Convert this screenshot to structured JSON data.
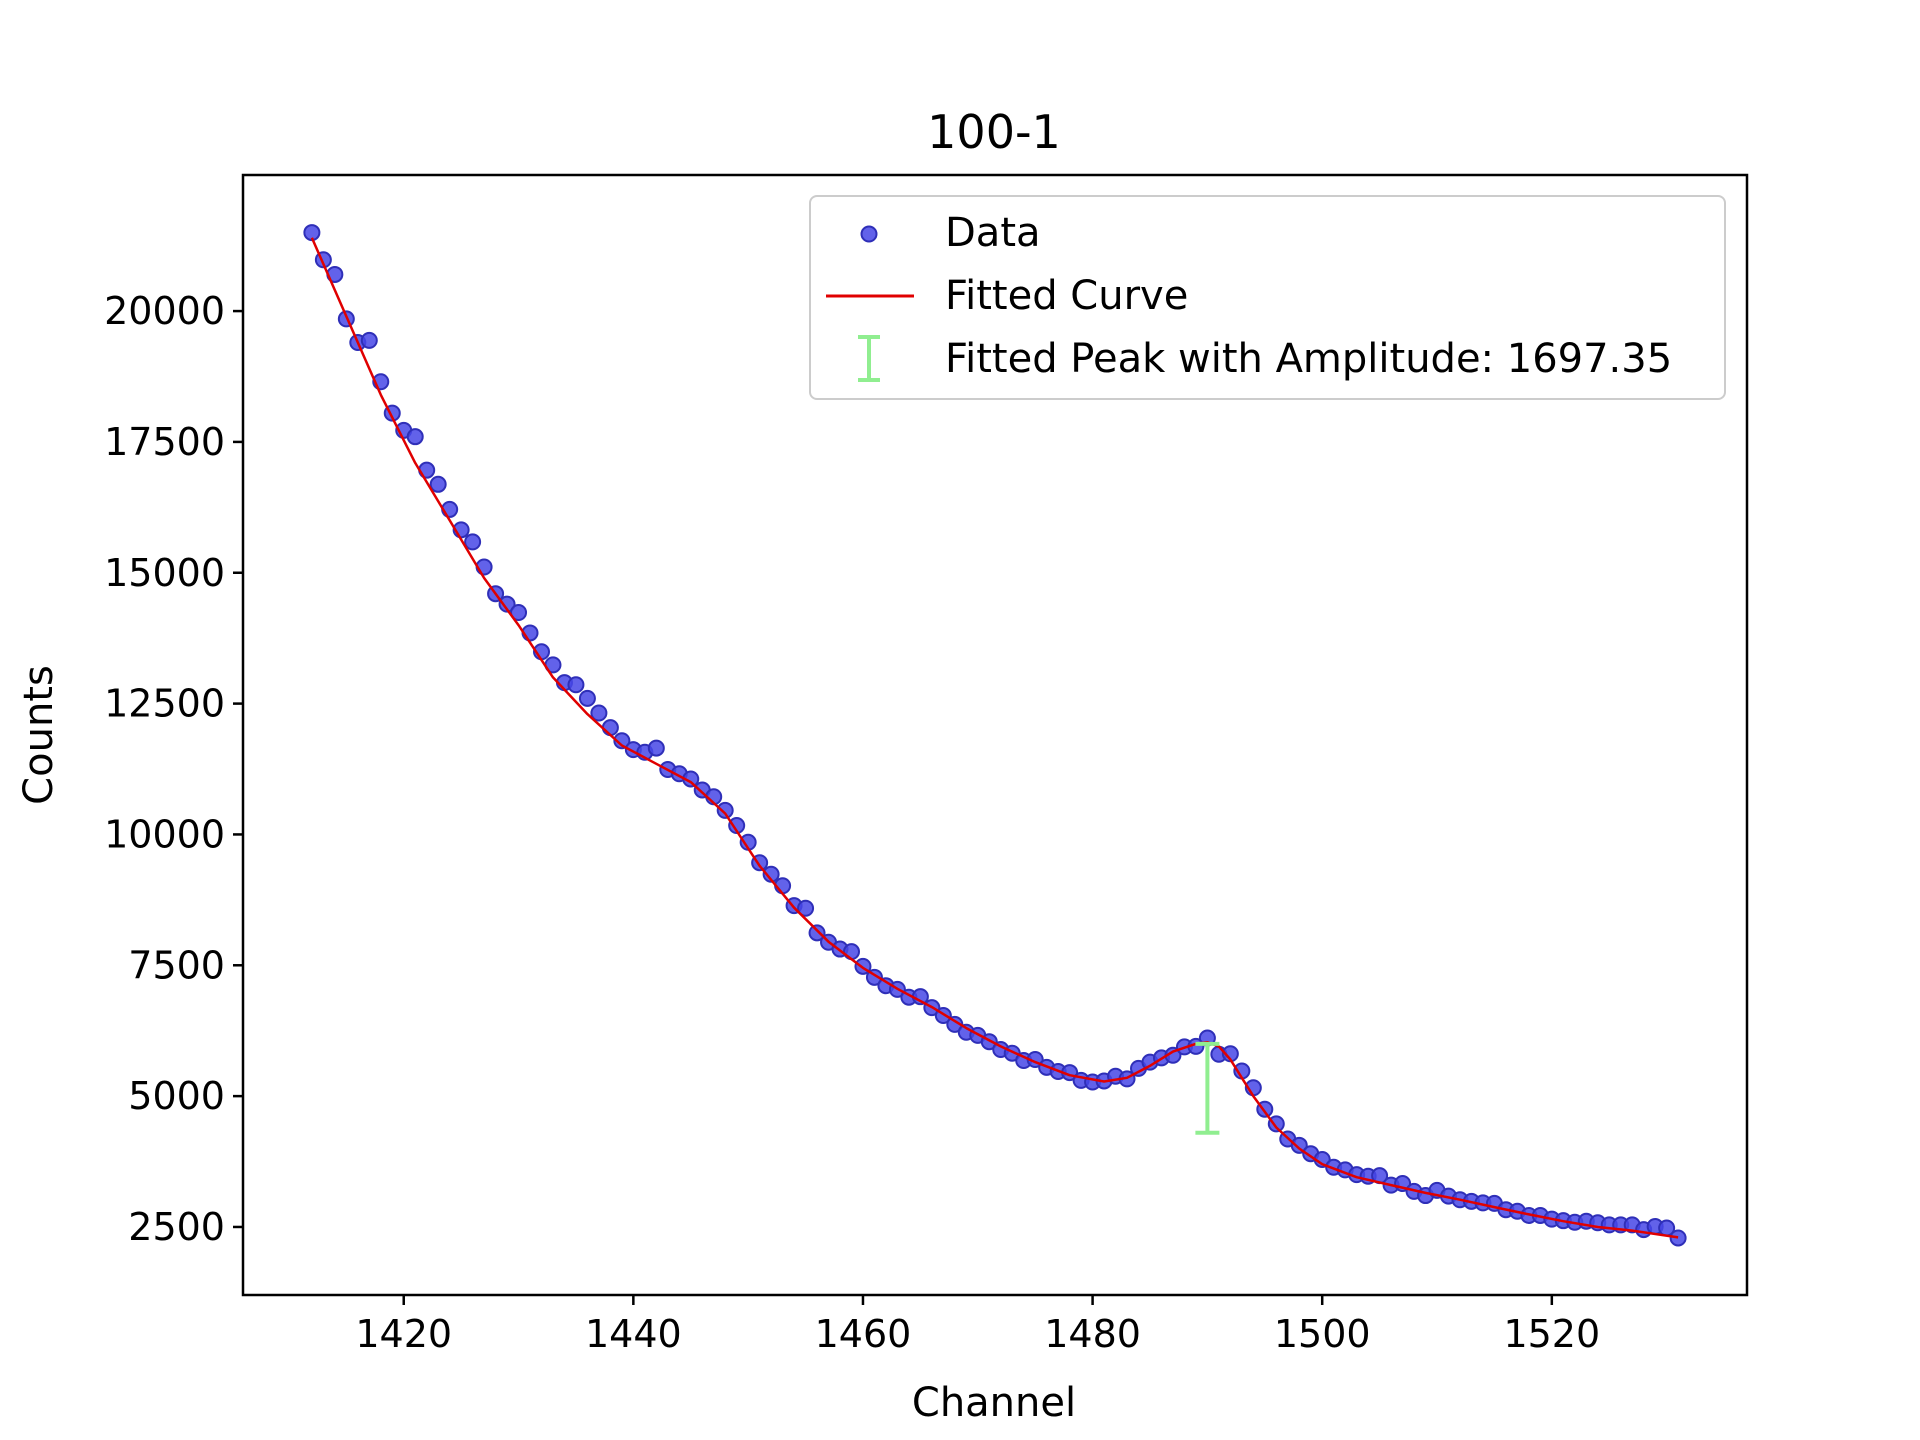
{
  "chart_data": {
    "type": "scatter",
    "title": "100-1",
    "xlabel": "Channel",
    "ylabel": "Counts",
    "xlim": [
      1406,
      1537
    ],
    "ylim": [
      1200,
      22600
    ],
    "xticks": [
      1420,
      1440,
      1460,
      1480,
      1500,
      1520
    ],
    "yticks": [
      2500,
      5000,
      7500,
      10000,
      12500,
      15000,
      17500,
      20000
    ],
    "grid": false,
    "legend_position": "top-right",
    "legend": {
      "data": "Data",
      "fit": "Fitted Curve",
      "peak": "Fitted Peak with Amplitude: 1697.35"
    },
    "colors": {
      "data": "#4747e6",
      "data_edge": "#2f2fb8",
      "fit": "#e00000",
      "peak": "#90ee90"
    },
    "series": [
      {
        "name": "Data",
        "kind": "scatter",
        "x": [
          1412,
          1413,
          1414,
          1415,
          1416,
          1417,
          1418,
          1419,
          1420,
          1421,
          1422,
          1423,
          1424,
          1425,
          1426,
          1427,
          1428,
          1429,
          1430,
          1431,
          1432,
          1433,
          1434,
          1435,
          1436,
          1437,
          1438,
          1439,
          1440,
          1441,
          1442,
          1443,
          1444,
          1445,
          1446,
          1447,
          1448,
          1449,
          1450,
          1451,
          1452,
          1453,
          1454,
          1455,
          1456,
          1457,
          1458,
          1459,
          1460,
          1461,
          1462,
          1463,
          1464,
          1465,
          1466,
          1467,
          1468,
          1469,
          1470,
          1471,
          1472,
          1473,
          1474,
          1475,
          1476,
          1477,
          1478,
          1479,
          1480,
          1481,
          1482,
          1483,
          1484,
          1485,
          1486,
          1487,
          1488,
          1489,
          1490,
          1491,
          1492,
          1493,
          1494,
          1495,
          1496,
          1497,
          1498,
          1499,
          1500,
          1501,
          1502,
          1503,
          1504,
          1505,
          1506,
          1507,
          1508,
          1509,
          1510,
          1511,
          1512,
          1513,
          1514,
          1515,
          1516,
          1517,
          1518,
          1519,
          1520,
          1521,
          1522,
          1523,
          1524,
          1525,
          1526,
          1527,
          1528,
          1529,
          1530,
          1531
        ],
        "y": [
          21500,
          20980,
          20700,
          19850,
          19400,
          19440,
          18650,
          18050,
          17720,
          17600,
          16960,
          16690,
          16210,
          15820,
          15590,
          15110,
          14600,
          14400,
          14240,
          13850,
          13490,
          13240,
          12900,
          12860,
          12600,
          12320,
          12040,
          11790,
          11620,
          11570,
          11650,
          11240,
          11160,
          11060,
          10850,
          10720,
          10460,
          10170,
          9850,
          9460,
          9240,
          9020,
          8640,
          8590,
          8120,
          7940,
          7810,
          7760,
          7480,
          7270,
          7110,
          7040,
          6890,
          6900,
          6690,
          6540,
          6370,
          6220,
          6160,
          6040,
          5890,
          5820,
          5680,
          5700,
          5550,
          5470,
          5450,
          5300,
          5270,
          5290,
          5380,
          5330,
          5530,
          5650,
          5730,
          5780,
          5940,
          5950,
          6110,
          5800,
          5810,
          5480,
          5160,
          4750,
          4470,
          4180,
          4060,
          3900,
          3790,
          3640,
          3590,
          3500,
          3470,
          3480,
          3300,
          3330,
          3180,
          3100,
          3200,
          3090,
          3020,
          2990,
          2960,
          2950,
          2830,
          2800,
          2720,
          2720,
          2650,
          2620,
          2590,
          2610,
          2580,
          2540,
          2540,
          2540,
          2450,
          2510,
          2480,
          2290
        ]
      },
      {
        "name": "Fitted Curve",
        "kind": "line",
        "x": [
          1412,
          1415,
          1418,
          1421,
          1424,
          1427,
          1430,
          1433,
          1436,
          1439,
          1442,
          1445,
          1448,
          1451,
          1454,
          1457,
          1460,
          1463,
          1466,
          1469,
          1472,
          1475,
          1478,
          1481,
          1483,
          1485,
          1487,
          1489,
          1490,
          1491,
          1492,
          1493,
          1494,
          1496,
          1498,
          1500,
          1503,
          1506,
          1509,
          1512,
          1515,
          1518,
          1521,
          1524,
          1527,
          1531
        ],
        "y": [
          21400,
          19900,
          18400,
          17100,
          16000,
          14900,
          14000,
          13000,
          12300,
          11700,
          11350,
          11000,
          10400,
          9400,
          8600,
          7950,
          7450,
          7050,
          6700,
          6300,
          5950,
          5650,
          5400,
          5280,
          5350,
          5580,
          5850,
          6000,
          6030,
          5950,
          5700,
          5350,
          5000,
          4400,
          4000,
          3700,
          3450,
          3300,
          3150,
          3020,
          2880,
          2740,
          2610,
          2500,
          2430,
          2300
        ]
      }
    ],
    "peak_marker": {
      "x": 1490,
      "y_low": 4300,
      "y_high": 5997.35,
      "amplitude": 1697.35
    }
  }
}
